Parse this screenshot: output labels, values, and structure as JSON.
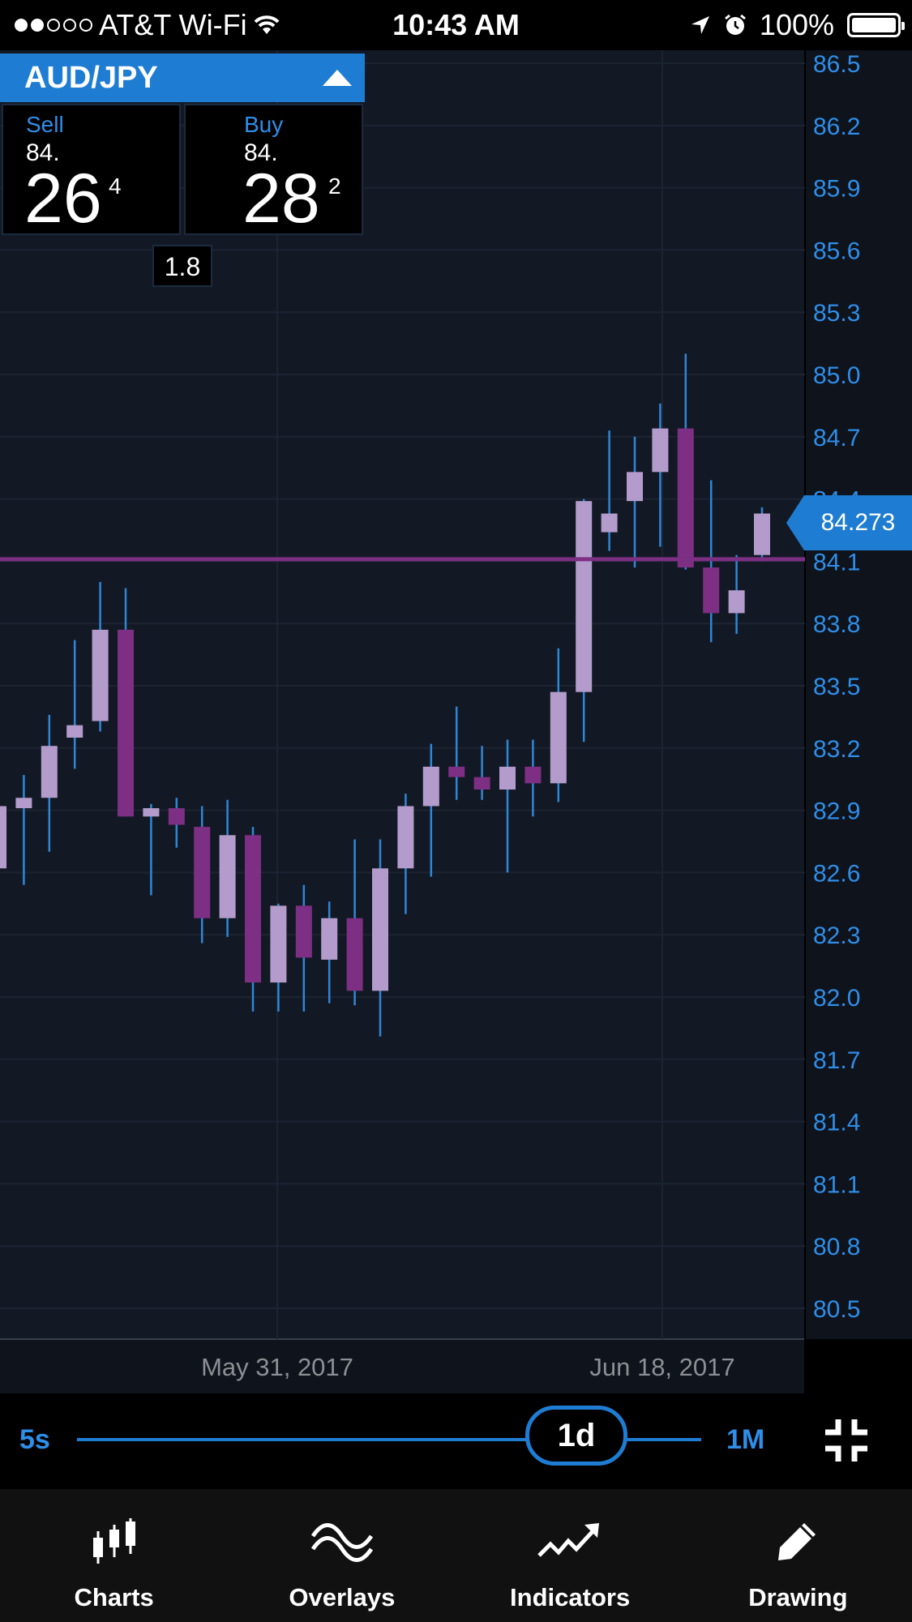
{
  "status_bar": {
    "carrier": "AT&T Wi-Fi",
    "time": "10:43 AM",
    "battery": "100%",
    "signal_bars_filled": 2,
    "signal_bars_total": 5
  },
  "instrument": {
    "pair": "AUD/JPY",
    "sell": {
      "label": "Sell",
      "big": "84.",
      "pips": "26",
      "fraction": "4"
    },
    "buy": {
      "label": "Buy",
      "big": "84.",
      "pips": "28",
      "fraction": "2"
    },
    "spread": "1.8"
  },
  "current_price": "84.273",
  "colors": {
    "accent": "#2f8ee8",
    "bull": "#b39ccb",
    "bear": "#7d2f84",
    "wick": "#2f86d6",
    "chart_bg": "#131924"
  },
  "chart_data": {
    "type": "candlestick",
    "y_ticks": [
      "86.5",
      "86.2",
      "85.9",
      "85.6",
      "85.3",
      "85.0",
      "84.7",
      "84.4",
      "84.1",
      "83.8",
      "83.5",
      "83.2",
      "82.9",
      "82.6",
      "82.3",
      "82.0",
      "81.7",
      "81.4",
      "81.1",
      "80.8",
      "80.5"
    ],
    "x_ticks": [
      "May 31, 2017",
      "Jun 18, 2017"
    ],
    "horizontal_line": 84.11,
    "candles": [
      {
        "o": 82.62,
        "h": 82.95,
        "l": 82.5,
        "c": 82.92
      },
      {
        "o": 82.91,
        "h": 83.07,
        "l": 82.54,
        "c": 82.96
      },
      {
        "o": 82.96,
        "h": 83.36,
        "l": 82.7,
        "c": 83.21
      },
      {
        "o": 83.25,
        "h": 83.72,
        "l": 83.1,
        "c": 83.31
      },
      {
        "o": 83.33,
        "h": 84.0,
        "l": 83.28,
        "c": 83.77
      },
      {
        "o": 83.77,
        "h": 83.97,
        "l": 82.87,
        "c": 82.87
      },
      {
        "o": 82.87,
        "h": 82.93,
        "l": 82.49,
        "c": 82.91
      },
      {
        "o": 82.91,
        "h": 82.96,
        "l": 82.72,
        "c": 82.83
      },
      {
        "o": 82.82,
        "h": 82.92,
        "l": 82.26,
        "c": 82.38
      },
      {
        "o": 82.38,
        "h": 82.95,
        "l": 82.29,
        "c": 82.78
      },
      {
        "o": 82.78,
        "h": 82.82,
        "l": 81.93,
        "c": 82.07
      },
      {
        "o": 82.07,
        "h": 82.45,
        "l": 81.93,
        "c": 82.44
      },
      {
        "o": 82.44,
        "h": 82.54,
        "l": 81.93,
        "c": 82.19
      },
      {
        "o": 82.18,
        "h": 82.46,
        "l": 81.97,
        "c": 82.38
      },
      {
        "o": 82.38,
        "h": 82.76,
        "l": 81.96,
        "c": 82.03
      },
      {
        "o": 82.03,
        "h": 82.76,
        "l": 81.81,
        "c": 82.62
      },
      {
        "o": 82.62,
        "h": 82.98,
        "l": 82.4,
        "c": 82.92
      },
      {
        "o": 82.92,
        "h": 83.22,
        "l": 82.58,
        "c": 83.11
      },
      {
        "o": 83.11,
        "h": 83.4,
        "l": 82.95,
        "c": 83.06
      },
      {
        "o": 83.06,
        "h": 83.21,
        "l": 82.95,
        "c": 83.0
      },
      {
        "o": 83.0,
        "h": 83.24,
        "l": 82.6,
        "c": 83.11
      },
      {
        "o": 83.11,
        "h": 83.24,
        "l": 82.87,
        "c": 83.03
      },
      {
        "o": 83.03,
        "h": 83.68,
        "l": 82.94,
        "c": 83.47
      },
      {
        "o": 83.47,
        "h": 84.4,
        "l": 83.23,
        "c": 84.39
      },
      {
        "o": 84.24,
        "h": 84.73,
        "l": 84.15,
        "c": 84.33
      },
      {
        "o": 84.39,
        "h": 84.7,
        "l": 84.07,
        "c": 84.53
      },
      {
        "o": 84.53,
        "h": 84.86,
        "l": 84.17,
        "c": 84.74
      },
      {
        "o": 84.74,
        "h": 85.1,
        "l": 84.06,
        "c": 84.07
      },
      {
        "o": 84.07,
        "h": 84.49,
        "l": 83.71,
        "c": 83.85
      },
      {
        "o": 83.85,
        "h": 84.13,
        "l": 83.75,
        "c": 83.96
      },
      {
        "o": 84.13,
        "h": 84.36,
        "l": 84.1,
        "c": 84.33
      }
    ]
  },
  "timeframe": {
    "min_label": "5s",
    "current": "1d",
    "max_label": "1M",
    "position": 0.78
  },
  "bottom_nav": [
    {
      "label": "Charts",
      "icon": "candlestick-chart-icon"
    },
    {
      "label": "Overlays",
      "icon": "overlay-wave-icon"
    },
    {
      "label": "Indicators",
      "icon": "trend-arrow-icon"
    },
    {
      "label": "Drawing",
      "icon": "pencil-icon"
    }
  ]
}
